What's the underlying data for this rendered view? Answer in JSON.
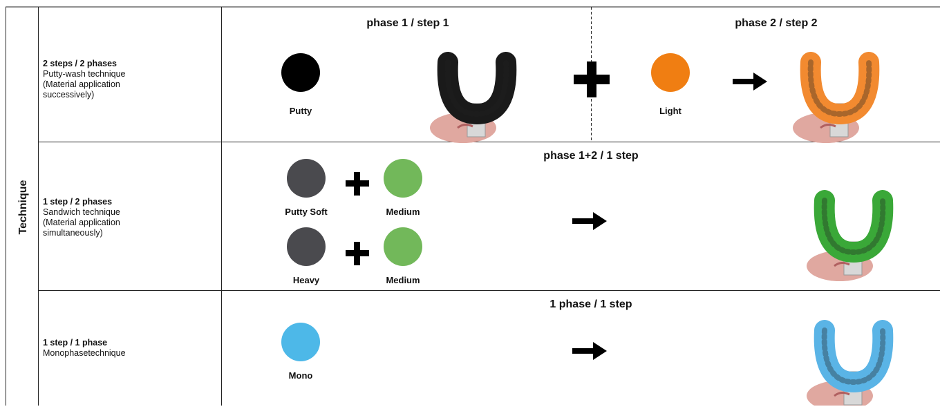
{
  "side_label": "Technique",
  "rows": [
    {
      "title": "2 steps / 2 phases",
      "description": [
        "Putty-wash technique",
        "(Material application",
        "successively)"
      ],
      "phases": [
        "phase 1 / step 1",
        "phase 2 / step 2"
      ],
      "materials": [
        "Putty",
        "Light"
      ]
    },
    {
      "title": "1 step / 2 phases",
      "description": [
        "Sandwich technique",
        "(Material application",
        "simultaneously)"
      ],
      "phases": [
        "phase 1+2 / 1 step"
      ],
      "materials": [
        "Putty Soft",
        "Medium",
        "Heavy",
        "Medium"
      ]
    },
    {
      "title": "1 step / 1 phase",
      "description": [
        "Monophasetechnique"
      ],
      "phases": [
        "1 phase  / 1 step"
      ],
      "materials": [
        "Mono"
      ]
    }
  ]
}
